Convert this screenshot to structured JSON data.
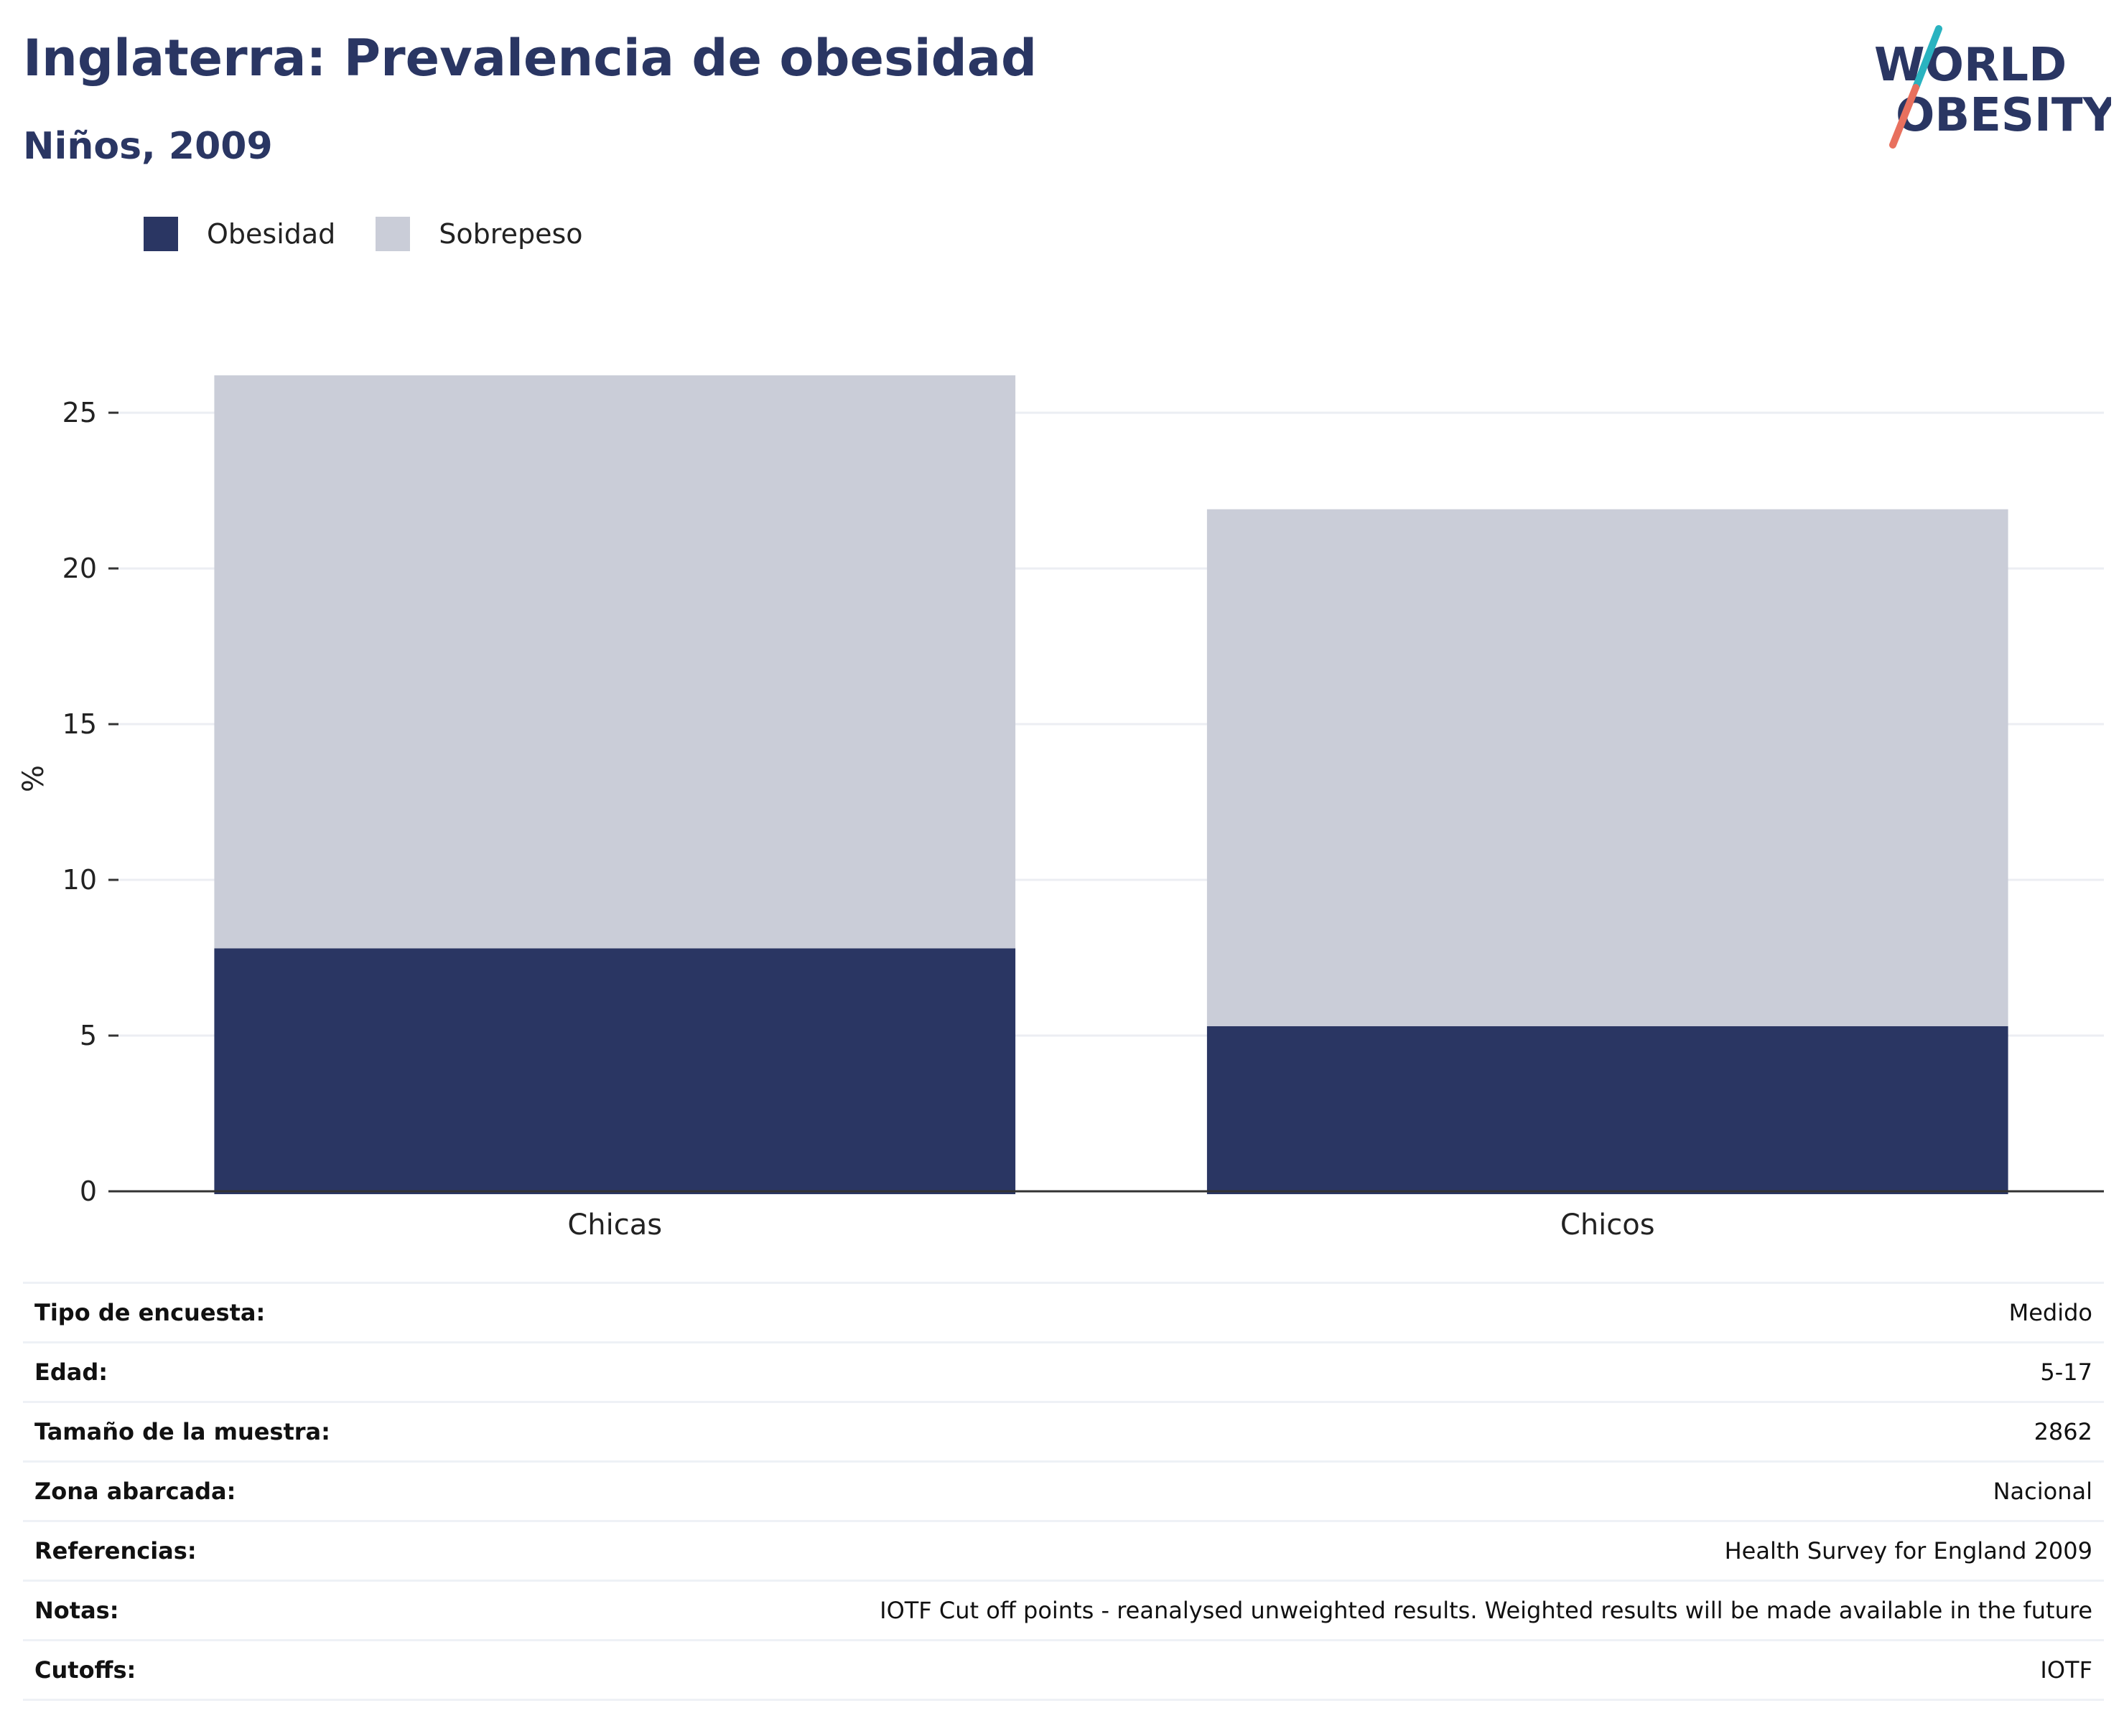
{
  "header": {
    "title": "Inglaterra: Prevalencia de obesidad",
    "subtitle": "Niños, 2009"
  },
  "logo": {
    "line1": "WORLD",
    "line2": "OBESITY",
    "colors": {
      "text": "#2a3663",
      "slash_top": "#2ab3c0",
      "slash_bottom": "#e8705e"
    }
  },
  "chart_data": {
    "type": "bar",
    "stacked": true,
    "categories": [
      "Chicas",
      "Chicos"
    ],
    "series": [
      {
        "name": "Obesidad",
        "values": [
          7.8,
          5.3
        ],
        "color": "#2a3663"
      },
      {
        "name": "Sobrepeso",
        "values": [
          18.4,
          16.6
        ],
        "color": "#cacdd8"
      }
    ],
    "ylabel": "%",
    "xlabel": "",
    "ylim": [
      0,
      26.5
    ],
    "yticks": [
      0,
      5,
      10,
      15,
      20,
      25
    ],
    "grid": true,
    "legend": "top-left"
  },
  "info": [
    {
      "label": "Tipo de encuesta:",
      "value": "Medido"
    },
    {
      "label": "Edad:",
      "value": "5-17"
    },
    {
      "label": "Tamaño de la muestra:",
      "value": "2862"
    },
    {
      "label": "Zona abarcada:",
      "value": "Nacional"
    },
    {
      "label": "Referencias:",
      "value": "Health Survey for England 2009"
    },
    {
      "label": "Notas:",
      "value": "IOTF Cut off points - reanalysed unweighted results. Weighted results will be made available in the future"
    },
    {
      "label": "Cutoffs:",
      "value": "IOTF"
    }
  ]
}
